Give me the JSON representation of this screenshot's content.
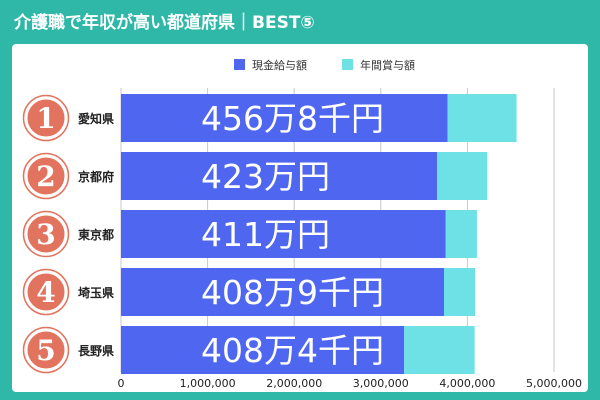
{
  "title": "介護職で年収が高い都道府県｜BEST⑤",
  "colors": {
    "frame": "#2fb8a8",
    "cash_salary": "#4e66f0",
    "bonus": "#6ee1e6",
    "rank_badge": "#e2745f",
    "grid": "#c8c8c8"
  },
  "chart_data": {
    "type": "bar",
    "orientation": "horizontal",
    "stacked": true,
    "categories": [
      "愛知県",
      "京都府",
      "東京都",
      "埼玉県",
      "長野県"
    ],
    "ranks": [
      "1",
      "2",
      "3",
      "4",
      "5"
    ],
    "series": [
      {
        "name": "現金給与額",
        "values": [
          3770000,
          3650000,
          3750000,
          3730000,
          3270000
        ]
      },
      {
        "name": "年間賞与額",
        "values": [
          798000,
          580000,
          360000,
          359000,
          814000
        ]
      }
    ],
    "bar_labels": [
      "456万8千円",
      "423万円",
      "411万円",
      "408万9千円",
      "408万4千円"
    ],
    "xlim": [
      0,
      5000000
    ],
    "x_ticks": [
      0,
      1000000,
      2000000,
      3000000,
      4000000,
      5000000
    ],
    "x_tick_labels": [
      "0",
      "1,000,000",
      "2,000,000",
      "3,000,000",
      "4,000,000",
      "5,000,000"
    ],
    "legend_position": "top-center",
    "grid": true
  }
}
